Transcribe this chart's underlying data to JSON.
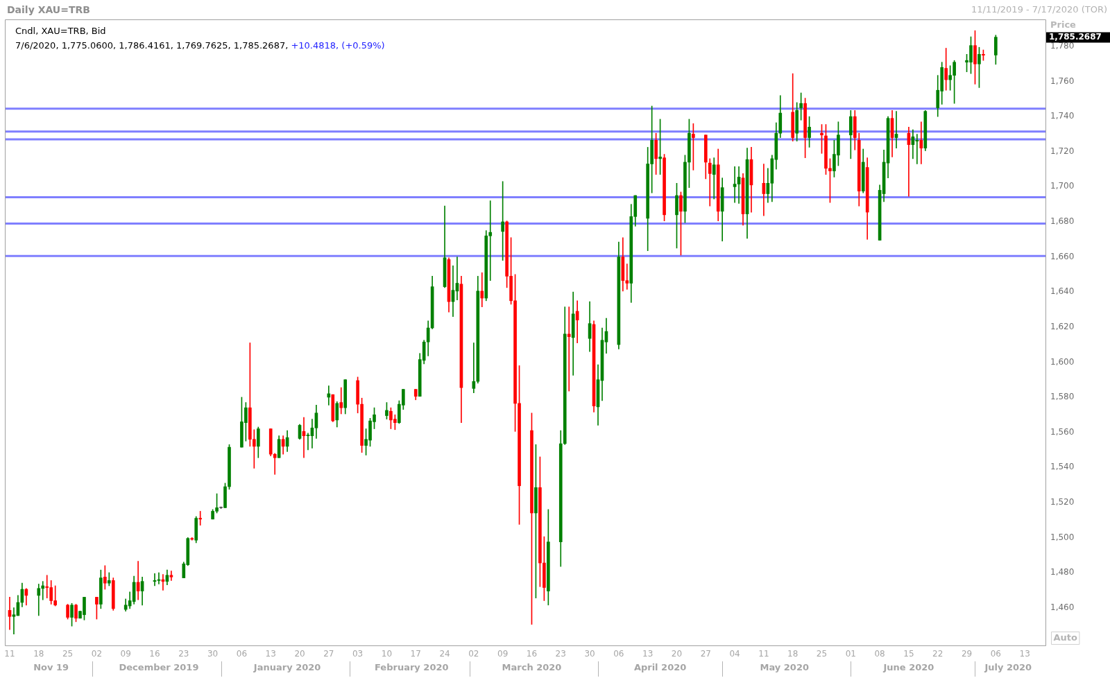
{
  "chart_data": {
    "type": "candlestick",
    "title": "Daily XAU=TRB",
    "subtitle": "11/11/2019 - 7/17/2020 (TOR)",
    "ylabel": "Price",
    "x": [
      "2019-11-11",
      "2019-11-12",
      "2019-11-13",
      "2019-11-14",
      "2019-11-15",
      "2019-11-18",
      "2019-11-19",
      "2019-11-20",
      "2019-11-21",
      "2019-11-22",
      "2019-11-25",
      "2019-11-26",
      "2019-11-27",
      "2019-11-28",
      "2019-11-29",
      "2019-12-02",
      "2019-12-03",
      "2019-12-04",
      "2019-12-05",
      "2019-12-06",
      "2019-12-09",
      "2019-12-10",
      "2019-12-11",
      "2019-12-12",
      "2019-12-13",
      "2019-12-16",
      "2019-12-17",
      "2019-12-18",
      "2019-12-19",
      "2019-12-20",
      "2019-12-23",
      "2019-12-24",
      "2019-12-25",
      "2019-12-26",
      "2019-12-27",
      "2019-12-30",
      "2019-12-31",
      "2020-01-01",
      "2020-01-02",
      "2020-01-03",
      "2020-01-06",
      "2020-01-07",
      "2020-01-08",
      "2020-01-09",
      "2020-01-10",
      "2020-01-13",
      "2020-01-14",
      "2020-01-15",
      "2020-01-16",
      "2020-01-17",
      "2020-01-20",
      "2020-01-21",
      "2020-01-22",
      "2020-01-23",
      "2020-01-24",
      "2020-01-27",
      "2020-01-28",
      "2020-01-29",
      "2020-01-30",
      "2020-01-31",
      "2020-02-03",
      "2020-02-04",
      "2020-02-05",
      "2020-02-06",
      "2020-02-07",
      "2020-02-10",
      "2020-02-11",
      "2020-02-12",
      "2020-02-13",
      "2020-02-14",
      "2020-02-17",
      "2020-02-18",
      "2020-02-19",
      "2020-02-20",
      "2020-02-21",
      "2020-02-24",
      "2020-02-25",
      "2020-02-26",
      "2020-02-27",
      "2020-02-28",
      "2020-03-02",
      "2020-03-03",
      "2020-03-04",
      "2020-03-05",
      "2020-03-06",
      "2020-03-09",
      "2020-03-10",
      "2020-03-11",
      "2020-03-12",
      "2020-03-13",
      "2020-03-16",
      "2020-03-17",
      "2020-03-18",
      "2020-03-19",
      "2020-03-20",
      "2020-03-23",
      "2020-03-24",
      "2020-03-25",
      "2020-03-26",
      "2020-03-27",
      "2020-03-30",
      "2020-03-31",
      "2020-04-01",
      "2020-04-02",
      "2020-04-03",
      "2020-04-06",
      "2020-04-07",
      "2020-04-08",
      "2020-04-09",
      "2020-04-10",
      "2020-04-13",
      "2020-04-14",
      "2020-04-15",
      "2020-04-16",
      "2020-04-17",
      "2020-04-20",
      "2020-04-21",
      "2020-04-22",
      "2020-04-23",
      "2020-04-24",
      "2020-04-27",
      "2020-04-28",
      "2020-04-29",
      "2020-04-30",
      "2020-05-01",
      "2020-05-04",
      "2020-05-05",
      "2020-05-06",
      "2020-05-07",
      "2020-05-08",
      "2020-05-11",
      "2020-05-12",
      "2020-05-13",
      "2020-05-14",
      "2020-05-15",
      "2020-05-18",
      "2020-05-19",
      "2020-05-20",
      "2020-05-21",
      "2020-05-22",
      "2020-05-25",
      "2020-05-26",
      "2020-05-27",
      "2020-05-28",
      "2020-05-29",
      "2020-06-01",
      "2020-06-02",
      "2020-06-03",
      "2020-06-04",
      "2020-06-05",
      "2020-06-08",
      "2020-06-09",
      "2020-06-10",
      "2020-06-11",
      "2020-06-12",
      "2020-06-15",
      "2020-06-16",
      "2020-06-17",
      "2020-06-18",
      "2020-06-19",
      "2020-06-22",
      "2020-06-23",
      "2020-06-24",
      "2020-06-25",
      "2020-06-26",
      "2020-06-29",
      "2020-06-30",
      "2020-07-01",
      "2020-07-02",
      "2020-07-03",
      "2020-07-06"
    ],
    "ohlc": [
      [
        1458.5,
        1466,
        1447.5,
        1455
      ],
      [
        1455,
        1460,
        1445,
        1456
      ],
      [
        1455.5,
        1467,
        1455.5,
        1463
      ],
      [
        1463,
        1474,
        1460.5,
        1470.5
      ],
      [
        1470.5,
        1471,
        1461.5,
        1467
      ],
      [
        1467,
        1473.5,
        1455.5,
        1471
      ],
      [
        1471,
        1475,
        1464.5,
        1472.5
      ],
      [
        1472,
        1478.5,
        1465.5,
        1471.5
      ],
      [
        1471.5,
        1475.5,
        1462,
        1464
      ],
      [
        1464,
        1472.5,
        1461,
        1461.5
      ],
      [
        1461.5,
        1462,
        1453.5,
        1454.5
      ],
      [
        1454.5,
        1462.5,
        1449.5,
        1461.5
      ],
      [
        1461.5,
        1462,
        1452,
        1454
      ],
      [
        1454,
        1458,
        1454,
        1458
      ],
      [
        1456,
        1466,
        1453,
        1466
      ],
      [
        1466,
        1466,
        1453.5,
        1462
      ],
      [
        1462,
        1481.5,
        1459.5,
        1477
      ],
      [
        1477.5,
        1484,
        1470.5,
        1474
      ],
      [
        1474,
        1480,
        1472.5,
        1475.5
      ],
      [
        1475.5,
        1477,
        1458.5,
        1459.5
      ],
      [
        1459,
        1465,
        1458,
        1461.5
      ],
      [
        1461,
        1469,
        1459.5,
        1464
      ],
      [
        1463.5,
        1478,
        1462,
        1474.5
      ],
      [
        1474.5,
        1486.5,
        1464.5,
        1469.5
      ],
      [
        1469.5,
        1477.5,
        1461.5,
        1475
      ],
      [
        1475,
        1479.5,
        1472.5,
        1475.5
      ],
      [
        1475.5,
        1480,
        1473.5,
        1476
      ],
      [
        1476,
        1479,
        1470,
        1475
      ],
      [
        1475,
        1481.5,
        1473,
        1478.5
      ],
      [
        1478.5,
        1481,
        1475.5,
        1477.5
      ],
      [
        1477,
        1486,
        1477,
        1485
      ],
      [
        1484.5,
        1500,
        1484,
        1499.5
      ],
      [
        1499.5,
        1500,
        1498.5,
        1499
      ],
      [
        1498.5,
        1512,
        1497,
        1511
      ],
      [
        1511,
        1515,
        1507,
        1510.5
      ],
      [
        1510.5,
        1516,
        1510.5,
        1515
      ],
      [
        1515,
        1525,
        1514,
        1517
      ],
      [
        1517,
        1517.5,
        1516.5,
        1517
      ],
      [
        1517,
        1531,
        1517,
        1529
      ],
      [
        1529,
        1553,
        1527.5,
        1551.5
      ],
      [
        1551.5,
        1580,
        1551.5,
        1566
      ],
      [
        1565.5,
        1577,
        1555,
        1574
      ],
      [
        1574,
        1611,
        1552,
        1556
      ],
      [
        1556,
        1561.5,
        1539.5,
        1552
      ],
      [
        1552,
        1563,
        1545.5,
        1562
      ],
      [
        1562,
        1562,
        1546.5,
        1547.5
      ],
      [
        1547.5,
        1548,
        1536,
        1545.5
      ],
      [
        1545.5,
        1558,
        1545.5,
        1556
      ],
      [
        1556,
        1558,
        1547.5,
        1552
      ],
      [
        1552,
        1561,
        1549,
        1557
      ],
      [
        1556.5,
        1564.5,
        1556,
        1564
      ],
      [
        1560.5,
        1568.5,
        1545.5,
        1558
      ],
      [
        1558,
        1559.5,
        1550,
        1558.5
      ],
      [
        1558,
        1567.5,
        1551,
        1562.5
      ],
      [
        1562.5,
        1575.5,
        1556.5,
        1571
      ],
      [
        1580,
        1586.5,
        1575.5,
        1582
      ],
      [
        1581.5,
        1581.5,
        1566,
        1566.5
      ],
      [
        1567,
        1577.5,
        1563,
        1576.5
      ],
      [
        1577,
        1585.5,
        1570.5,
        1574
      ],
      [
        1574,
        1590,
        1570.5,
        1590
      ],
      [
        1589.5,
        1591.5,
        1571,
        1576
      ],
      [
        1576,
        1579.5,
        1548.5,
        1552.5
      ],
      [
        1552.5,
        1562,
        1547,
        1556
      ],
      [
        1555.5,
        1568,
        1552,
        1566.5
      ],
      [
        1566,
        1574,
        1562,
        1570
      ],
      [
        1569.5,
        1577,
        1567.5,
        1572.5
      ],
      [
        1572,
        1574,
        1562,
        1567
      ],
      [
        1567.5,
        1570,
        1561.5,
        1565.5
      ],
      [
        1565.5,
        1578,
        1565,
        1576
      ],
      [
        1575.5,
        1584.5,
        1573,
        1584.5
      ],
      [
        1584.5,
        1584.5,
        1578.5,
        1580.5
      ],
      [
        1580.5,
        1605,
        1580.5,
        1601.5
      ],
      [
        1601,
        1612.5,
        1599,
        1611.5
      ],
      [
        1611.5,
        1623.5,
        1603.5,
        1619.5
      ],
      [
        1619.5,
        1649,
        1619,
        1643
      ],
      [
        1643,
        1689,
        1642.5,
        1659.5
      ],
      [
        1658.5,
        1659.5,
        1628.5,
        1634.5
      ],
      [
        1634.5,
        1655,
        1626,
        1641
      ],
      [
        1640.5,
        1660,
        1635.5,
        1645
      ],
      [
        1644.5,
        1649,
        1565.5,
        1585.5
      ],
      [
        1585,
        1611,
        1582.5,
        1589
      ],
      [
        1589,
        1649,
        1588,
        1640.5
      ],
      [
        1640.5,
        1651,
        1631.5,
        1636.5
      ],
      [
        1636.5,
        1675,
        1635,
        1672
      ],
      [
        1672,
        1692,
        1646.5,
        1674
      ],
      [
        1674.5,
        1703,
        1658,
        1680
      ],
      [
        1680,
        1680.5,
        1642.5,
        1649
      ],
      [
        1649,
        1671,
        1633,
        1635
      ],
      [
        1635,
        1650,
        1560.5,
        1576.5
      ],
      [
        1576.5,
        1598,
        1507.5,
        1529.5
      ],
      [
        1561,
        1571,
        1450.5,
        1514
      ],
      [
        1514,
        1553,
        1465.5,
        1528.5
      ],
      [
        1528.5,
        1546,
        1472,
        1485.5
      ],
      [
        1485.5,
        1500.5,
        1464,
        1471.5
      ],
      [
        1469.5,
        1516,
        1461.5,
        1497.5
      ],
      [
        1497.5,
        1561,
        1483.5,
        1553.5
      ],
      [
        1553.5,
        1631.5,
        1553,
        1616
      ],
      [
        1616,
        1631.5,
        1583.5,
        1614.5
      ],
      [
        1614,
        1640,
        1592.5,
        1627.5
      ],
      [
        1629,
        1635,
        1611,
        1624
      ],
      [
        1613.5,
        1634.5,
        1606,
        1622
      ],
      [
        1621.5,
        1623.5,
        1571.5,
        1575
      ],
      [
        1574.5,
        1598.5,
        1564,
        1590
      ],
      [
        1589.5,
        1619.5,
        1578,
        1612.5
      ],
      [
        1611.5,
        1625,
        1605,
        1617.5
      ],
      [
        1610,
        1668.5,
        1607.5,
        1660
      ],
      [
        1660,
        1671,
        1640.5,
        1646.5
      ],
      [
        1646.5,
        1656,
        1641.5,
        1645
      ],
      [
        1645,
        1690,
        1634,
        1683
      ],
      [
        1683,
        1695,
        1677.5,
        1695
      ],
      [
        1682,
        1722.5,
        1663.5,
        1713
      ],
      [
        1713,
        1746,
        1696.5,
        1726.5
      ],
      [
        1726.5,
        1730.5,
        1707,
        1716
      ],
      [
        1716,
        1738.5,
        1707,
        1717
      ],
      [
        1716.5,
        1718.5,
        1680.5,
        1684
      ],
      [
        1684,
        1702,
        1665,
        1695
      ],
      [
        1695,
        1697,
        1661,
        1686
      ],
      [
        1686,
        1718,
        1679.5,
        1714
      ],
      [
        1714,
        1738.5,
        1699.5,
        1730.5
      ],
      [
        1730,
        1736,
        1709.5,
        1728
      ],
      [
        1729.5,
        1729.5,
        1704.5,
        1714
      ],
      [
        1713.5,
        1716,
        1689,
        1707.5
      ],
      [
        1707,
        1716.5,
        1693,
        1712.5
      ],
      [
        1712.5,
        1721.5,
        1680.5,
        1686
      ],
      [
        1686,
        1705,
        1669,
        1699.5
      ],
      [
        1700,
        1711.5,
        1691,
        1701.5
      ],
      [
        1701.5,
        1711.5,
        1690.5,
        1705.5
      ],
      [
        1705,
        1707.5,
        1678,
        1684.5
      ],
      [
        1684.5,
        1722,
        1670.5,
        1715.5
      ],
      [
        1715.5,
        1722.5,
        1685.5,
        1701
      ],
      [
        1702,
        1713,
        1683.5,
        1696
      ],
      [
        1696,
        1710.5,
        1691,
        1702
      ],
      [
        1702,
        1718,
        1691.5,
        1716
      ],
      [
        1715.5,
        1736.5,
        1710,
        1730.5
      ],
      [
        1730.5,
        1752,
        1728,
        1742
      ],
      [
        1742.5,
        1764.5,
        1726,
        1728
      ],
      [
        1730.5,
        1748,
        1726,
        1743.5
      ],
      [
        1745,
        1753.5,
        1738,
        1747.5
      ],
      [
        1747.5,
        1750.5,
        1716.5,
        1728
      ],
      [
        1728,
        1740,
        1722.5,
        1734
      ],
      [
        1730.5,
        1735.5,
        1719,
        1729.5
      ],
      [
        1729,
        1735.5,
        1707,
        1710.5
      ],
      [
        1710.5,
        1716,
        1691,
        1709
      ],
      [
        1709,
        1726.5,
        1705.5,
        1718.5
      ],
      [
        1718,
        1737,
        1712,
        1729.5
      ],
      [
        1729.5,
        1743.5,
        1716,
        1740
      ],
      [
        1740,
        1743.5,
        1721,
        1728
      ],
      [
        1726.5,
        1730.5,
        1689,
        1697.5
      ],
      [
        1697.5,
        1721.5,
        1696.5,
        1714
      ],
      [
        1711,
        1716.5,
        1670,
        1685.5
      ],
      [
        1669.5,
        1701,
        1669.5,
        1698
      ],
      [
        1696,
        1721,
        1691.5,
        1714
      ],
      [
        1713.5,
        1740,
        1705,
        1739
      ],
      [
        1739,
        1743.5,
        1717,
        1728
      ],
      [
        1728,
        1743,
        1722,
        1730
      ],
      [
        1730.5,
        1734,
        1694.5,
        1724
      ],
      [
        1724,
        1732.5,
        1716,
        1728.5
      ],
      [
        1726,
        1730,
        1713,
        1726.5
      ],
      [
        1726.5,
        1737,
        1713,
        1722
      ],
      [
        1722,
        1743.5,
        1720.5,
        1743
      ],
      [
        1745,
        1763.5,
        1740,
        1755
      ],
      [
        1754.5,
        1771,
        1747,
        1768
      ],
      [
        1767.5,
        1779,
        1755,
        1761
      ],
      [
        1761,
        1769,
        1755,
        1763.5
      ],
      [
        1763.5,
        1772,
        1747.5,
        1771
      ],
      [
        1771,
        1775.5,
        1765.5,
        1772
      ],
      [
        1771,
        1785.5,
        1764.5,
        1780.5
      ],
      [
        1780.5,
        1789,
        1758.5,
        1770
      ],
      [
        1770,
        1779.5,
        1756.5,
        1775.5
      ],
      [
        1775.5,
        1778,
        1772,
        1775
      ],
      [
        1775.06,
        1786.4161,
        1769.7625,
        1785.2687
      ]
    ],
    "colors": [
      "#ff0000",
      "#008000",
      "#008000",
      "#008000",
      "#ff0000",
      "#008000",
      "#008000",
      "#ff0000",
      "#ff0000",
      "#ff0000",
      "#ff0000",
      "#008000",
      "#ff0000",
      "#008000",
      "#008000",
      "#ff0000",
      "#008000",
      "#ff0000",
      "#008000",
      "#ff0000",
      "#008000",
      "#008000",
      "#008000",
      "#ff0000",
      "#008000",
      "#008000",
      "#008000",
      "#ff0000",
      "#008000",
      "#ff0000",
      "#008000",
      "#008000",
      "#ff0000",
      "#008000",
      "#ff0000",
      "#008000",
      "#008000",
      "#505050",
      "#008000",
      "#008000",
      "#008000",
      "#008000",
      "#ff0000",
      "#ff0000",
      "#008000",
      "#ff0000",
      "#ff0000",
      "#008000",
      "#ff0000",
      "#008000",
      "#008000",
      "#ff0000",
      "#008000",
      "#008000",
      "#008000",
      "#008000",
      "#ff0000",
      "#008000",
      "#ff0000",
      "#008000",
      "#ff0000",
      "#ff0000",
      "#008000",
      "#008000",
      "#008000",
      "#008000",
      "#ff0000",
      "#ff0000",
      "#008000",
      "#008000",
      "#ff0000",
      "#008000",
      "#008000",
      "#008000",
      "#008000",
      "#008000",
      "#ff0000",
      "#008000",
      "#008000",
      "#ff0000",
      "#008000",
      "#008000",
      "#ff0000",
      "#008000",
      "#008000",
      "#008000",
      "#ff0000",
      "#ff0000",
      "#ff0000",
      "#ff0000",
      "#ff0000",
      "#008000",
      "#ff0000",
      "#ff0000",
      "#008000",
      "#008000",
      "#008000",
      "#ff0000",
      "#008000",
      "#ff0000",
      "#008000",
      "#ff0000",
      "#008000",
      "#008000",
      "#008000",
      "#008000",
      "#ff0000",
      "#ff0000",
      "#008000",
      "#008000",
      "#008000",
      "#008000",
      "#ff0000",
      "#008000",
      "#ff0000",
      "#008000",
      "#ff0000",
      "#008000",
      "#008000",
      "#ff0000",
      "#ff0000",
      "#ff0000",
      "#008000",
      "#ff0000",
      "#008000",
      "#008000",
      "#008000",
      "#ff0000",
      "#008000",
      "#ff0000",
      "#ff0000",
      "#008000",
      "#008000",
      "#008000",
      "#008000",
      "#ff0000",
      "#008000",
      "#008000",
      "#ff0000",
      "#008000",
      "#ff0000",
      "#ff0000",
      "#ff0000",
      "#008000",
      "#008000",
      "#008000",
      "#ff0000",
      "#ff0000",
      "#008000",
      "#ff0000",
      "#008000",
      "#008000",
      "#008000",
      "#ff0000",
      "#008000",
      "#ff0000",
      "#008000",
      "#008000",
      "#ff0000",
      "#008000",
      "#008000",
      "#008000",
      "#ff0000",
      "#008000",
      "#008000",
      "#008000",
      "#008000",
      "#ff0000",
      "#008000",
      "#ff0000",
      "#008000"
    ],
    "xlim": [
      "2019-11-10",
      "2020-07-18"
    ],
    "xticks": [
      {
        "value": "2019-11-11",
        "label": "11"
      },
      {
        "value": "2019-11-18",
        "label": "18"
      },
      {
        "value": "2019-11-25",
        "label": "25"
      },
      {
        "value": "2019-12-02",
        "label": "02"
      },
      {
        "value": "2019-12-09",
        "label": "09"
      },
      {
        "value": "2019-12-16",
        "label": "16"
      },
      {
        "value": "2019-12-23",
        "label": "23"
      },
      {
        "value": "2019-12-30",
        "label": "30"
      },
      {
        "value": "2020-01-06",
        "label": "06"
      },
      {
        "value": "2020-01-13",
        "label": "13"
      },
      {
        "value": "2020-01-20",
        "label": "20"
      },
      {
        "value": "2020-01-27",
        "label": "27"
      },
      {
        "value": "2020-02-03",
        "label": "03"
      },
      {
        "value": "2020-02-10",
        "label": "10"
      },
      {
        "value": "2020-02-17",
        "label": "17"
      },
      {
        "value": "2020-02-24",
        "label": "24"
      },
      {
        "value": "2020-03-02",
        "label": "02"
      },
      {
        "value": "2020-03-09",
        "label": "09"
      },
      {
        "value": "2020-03-16",
        "label": "16"
      },
      {
        "value": "2020-03-23",
        "label": "23"
      },
      {
        "value": "2020-03-30",
        "label": "30"
      },
      {
        "value": "2020-04-06",
        "label": "06"
      },
      {
        "value": "2020-04-13",
        "label": "13"
      },
      {
        "value": "2020-04-20",
        "label": "20"
      },
      {
        "value": "2020-04-27",
        "label": "27"
      },
      {
        "value": "2020-05-04",
        "label": "04"
      },
      {
        "value": "2020-05-11",
        "label": "11"
      },
      {
        "value": "2020-05-18",
        "label": "18"
      },
      {
        "value": "2020-05-25",
        "label": "25"
      },
      {
        "value": "2020-06-01",
        "label": "01"
      },
      {
        "value": "2020-06-08",
        "label": "08"
      },
      {
        "value": "2020-06-15",
        "label": "15"
      },
      {
        "value": "2020-06-22",
        "label": "22"
      },
      {
        "value": "2020-06-29",
        "label": "29"
      },
      {
        "value": "2020-07-06",
        "label": "06"
      },
      {
        "value": "2020-07-13",
        "label": "13"
      }
    ],
    "x2lim": [
      "2019-11-10",
      "2020-07-18"
    ],
    "x2ticks": [
      {
        "value": "2019-11-21",
        "label": "Nov 19"
      },
      {
        "value": "2019-12-17",
        "label": "December 2019"
      },
      {
        "value": "2020-01-17",
        "label": "January 2020"
      },
      {
        "value": "2020-02-16",
        "label": "February 2020"
      },
      {
        "value": "2020-03-16",
        "label": "March 2020"
      },
      {
        "value": "2020-04-16",
        "label": "April 2020"
      },
      {
        "value": "2020-05-16",
        "label": "May 2020"
      },
      {
        "value": "2020-06-15",
        "label": "June 2020"
      },
      {
        "value": "2020-07-09",
        "label": "July 2020"
      }
    ],
    "ylim": [
      1438.5,
      1795
    ],
    "yticks": [
      {
        "value": 1460,
        "label": "1,460"
      },
      {
        "value": 1480,
        "label": "1,480"
      },
      {
        "value": 1500,
        "label": "1,500"
      },
      {
        "value": 1520,
        "label": "1,520"
      },
      {
        "value": 1540,
        "label": "1,540"
      },
      {
        "value": 1560,
        "label": "1,560"
      },
      {
        "value": 1580,
        "label": "1,580"
      },
      {
        "value": 1600,
        "label": "1,600"
      },
      {
        "value": 1620,
        "label": "1,620"
      },
      {
        "value": 1640,
        "label": "1,640"
      },
      {
        "value": 1660,
        "label": "1,660"
      },
      {
        "value": 1680,
        "label": "1,680"
      },
      {
        "value": 1700,
        "label": "1,700"
      },
      {
        "value": 1720,
        "label": "1,720"
      },
      {
        "value": 1740,
        "label": "1,740"
      },
      {
        "value": 1760,
        "label": "1,760"
      },
      {
        "value": 1780,
        "label": "1,780"
      }
    ],
    "ref_lines": [
      {
        "axis": "y",
        "value": 1744.5,
        "color": "#7f7fff"
      },
      {
        "axis": "y",
        "value": 1731.5,
        "color": "#7f7fff"
      },
      {
        "axis": "y",
        "value": 1727,
        "color": "#7f7fff"
      },
      {
        "axis": "y",
        "value": 1694,
        "color": "#7f7fff"
      },
      {
        "axis": "y",
        "value": 1679,
        "color": "#7f7fff"
      },
      {
        "axis": "y",
        "value": 1660.5,
        "color": "#7f7fff"
      }
    ],
    "annotations": [
      "Cndl, XAU=TRB, Bid",
      "7/6/2020, 1,775.0600, 1,786.4161, 1,769.7625, 1,785.2687,",
      "+10.4818, (+0.59%)",
      "Auto",
      "1,785.2687"
    ]
  }
}
